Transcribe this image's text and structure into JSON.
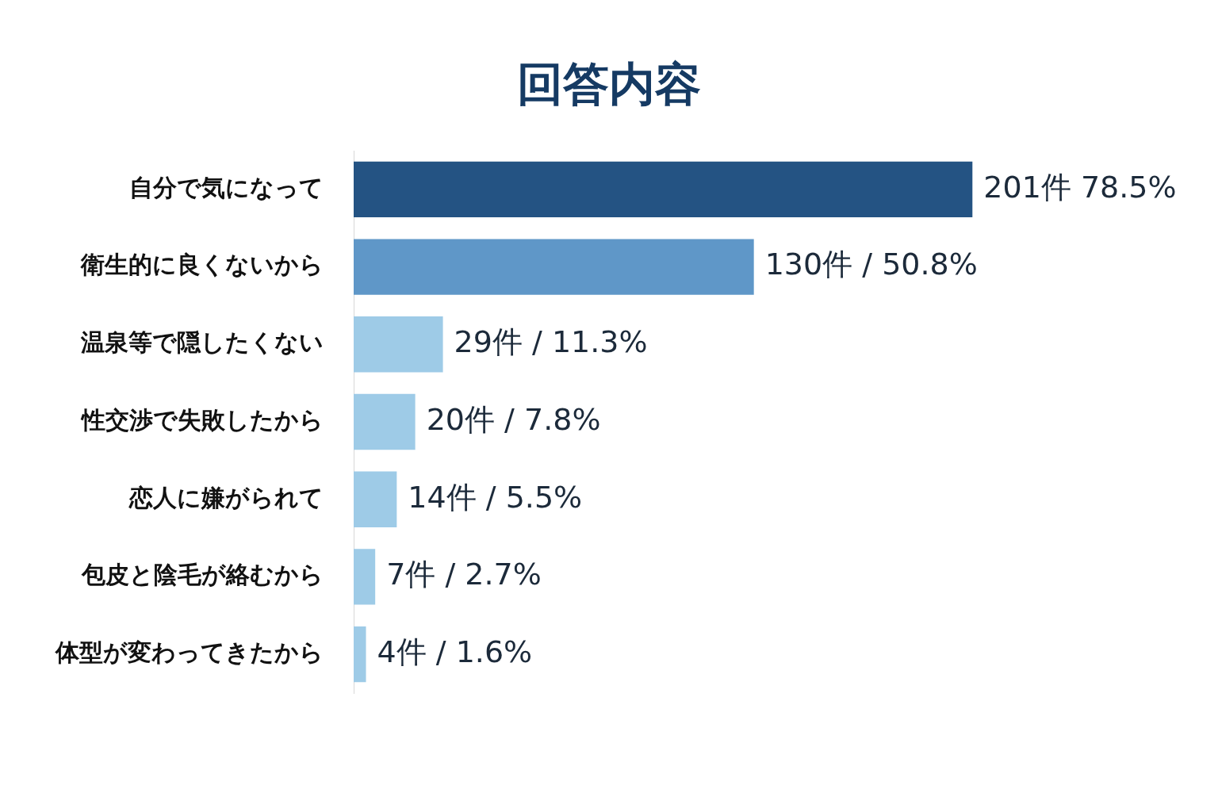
{
  "chart_data": {
    "type": "bar",
    "orientation": "horizontal",
    "title": "回答内容",
    "categories": [
      "自分で気になって",
      "衛生的に良くないから",
      "温泉等で隠したくない",
      "性交渉で失敗したから",
      "恋人に嫌がられて",
      "包皮と陰毛が絡むから",
      "体型が変わってきたから"
    ],
    "values": [
      201,
      130,
      29,
      20,
      14,
      7,
      4
    ],
    "colors": [
      "#245383",
      "#5f97c8",
      "#9ecbe7",
      "#9ecbe7",
      "#9ecbe7",
      "#9ecbe7",
      "#9ecbe7"
    ],
    "value_labels": [
      "201件 78.5%",
      "130件 / 50.8%",
      "29件 / 11.3%",
      "20件 / 7.8%",
      "14件 / 5.5%",
      "7件 / 2.7%",
      "4件 / 1.6%"
    ]
  }
}
